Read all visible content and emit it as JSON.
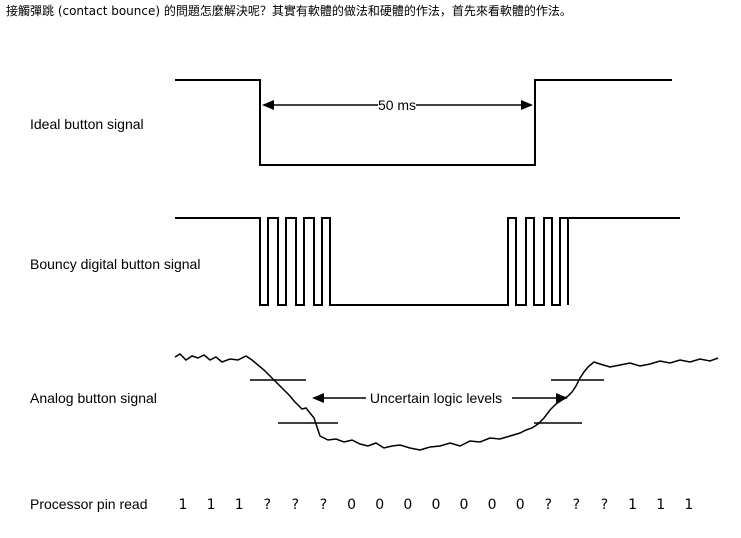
{
  "intro_text": "接觸彈跳 (contact bounce) 的問題怎麼解決呢？其實有軟體的做法和硬體的作法，首先來看軟體的作法。",
  "rows": {
    "ideal": "Ideal button signal",
    "bouncy": "Bouncy digital button signal",
    "analog": "Analog button signal",
    "processor": "Processor pin read"
  },
  "annotations": {
    "duration": "50 ms",
    "uncertain": "Uncertain logic levels"
  },
  "processor_reads": [
    "1",
    "1",
    "1",
    "?",
    "?",
    "?",
    "0",
    "0",
    "0",
    "0",
    "0",
    "0",
    "0",
    "?",
    "?",
    "?",
    "1",
    "1",
    "1"
  ]
}
